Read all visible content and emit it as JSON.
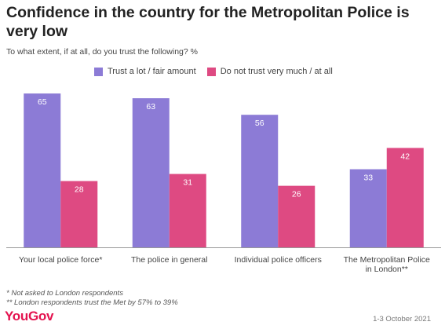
{
  "header": {
    "title": "Confidence in the country for the Metropolitan Police is very low",
    "subtitle": "To what extent, if at all, do you trust the following? %"
  },
  "chart_data": {
    "type": "bar",
    "title": "Confidence in the country for the Metropolitan Police is very low",
    "subtitle": "To what extent, if at all, do you trust the following? %",
    "categories": [
      "Your local police force*",
      "The police in general",
      "Individual police officers",
      "The Metropolitan Police in London**"
    ],
    "series": [
      {
        "name": "Trust a lot / fair amount",
        "color": "#8c7bd6",
        "values": [
          65,
          63,
          56,
          33
        ]
      },
      {
        "name": "Do not trust very much / at all",
        "color": "#de4a82",
        "values": [
          28,
          31,
          26,
          42
        ]
      }
    ],
    "ylim": [
      0,
      70
    ],
    "grid": false,
    "legend_position": "top"
  },
  "footnotes": [
    "* Not asked to London respondents",
    "** London respondents trust the Met by 57% to 39%"
  ],
  "footer": {
    "brand": "YouGov",
    "date": "1-3 October 2021"
  }
}
